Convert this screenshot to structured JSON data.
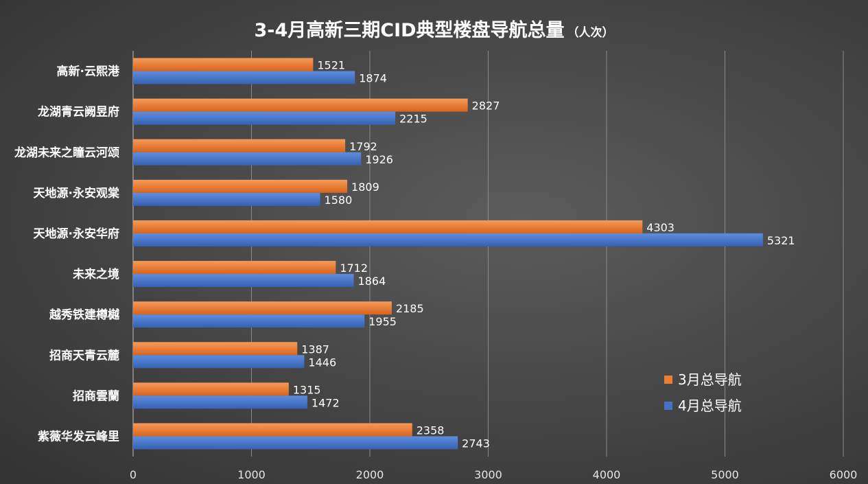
{
  "chart_data": {
    "type": "bar",
    "orientation": "horizontal",
    "title": "3-4月高新三期CID典型楼盘导航总量",
    "title_unit": "（人次）",
    "categories": [
      "高新·云熙港",
      "龙湖青云阙昱府",
      "龙湖未来之瞳云河颂",
      "天地源·永安观棠",
      "天地源·永安华府",
      "未来之境",
      "越秀铁建樽樾",
      "招商天青云麓",
      "招商雲蘭",
      "紫薇华发云峰里"
    ],
    "series": [
      {
        "name": "3月总导航",
        "color": "#ED7D31",
        "values": [
          1521,
          2827,
          1792,
          1809,
          4303,
          1712,
          2185,
          1387,
          1315,
          2358
        ]
      },
      {
        "name": "4月总导航",
        "color": "#4472C4",
        "values": [
          1874,
          2215,
          1926,
          1580,
          5321,
          1864,
          1955,
          1446,
          1472,
          2743
        ]
      }
    ],
    "xlim": [
      0,
      6000
    ],
    "xticks": [
      0,
      1000,
      2000,
      3000,
      4000,
      5000,
      6000
    ],
    "grid": true,
    "legend_position": "bottom-right",
    "xlabel": "",
    "ylabel": ""
  }
}
